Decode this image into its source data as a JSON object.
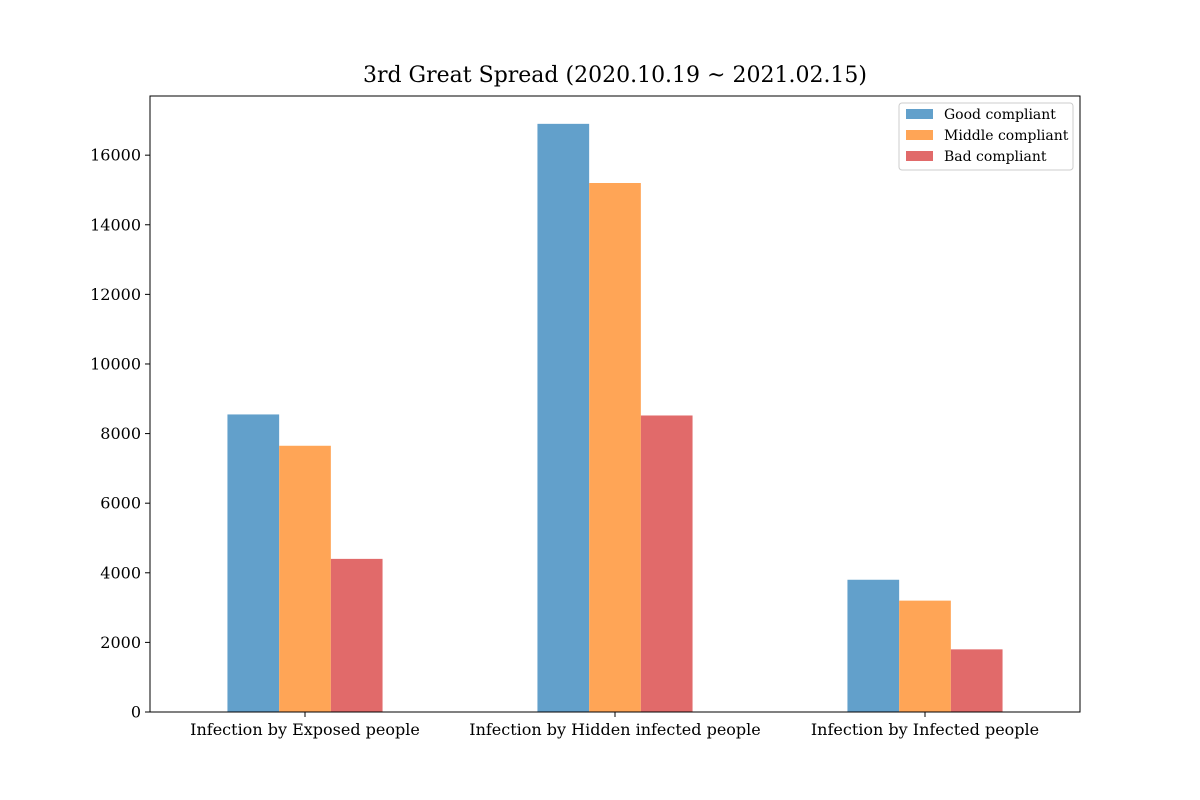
{
  "chart_data": {
    "type": "bar",
    "title": "3rd Great Spread (2020.10.19 ~ 2021.02.15)",
    "xlabel": "",
    "ylabel": "",
    "categories": [
      "Infection by Exposed people",
      "Infection by Hidden infected people",
      "Infection by Infected people"
    ],
    "series": [
      {
        "name": "Good compliant",
        "color": "#62a0cb",
        "values": [
          8550,
          16900,
          3800
        ]
      },
      {
        "name": "Middle compliant",
        "color": "#ffa556",
        "values": [
          7650,
          15200,
          3200
        ]
      },
      {
        "name": "Bad compliant",
        "color": "#e16a6a",
        "values": [
          4400,
          8520,
          1800
        ]
      }
    ],
    "ylim": [
      0,
      17700
    ],
    "yticks": [
      0,
      2000,
      4000,
      6000,
      8000,
      10000,
      12000,
      14000,
      16000
    ],
    "grid": false,
    "legend_position": "top-right"
  }
}
